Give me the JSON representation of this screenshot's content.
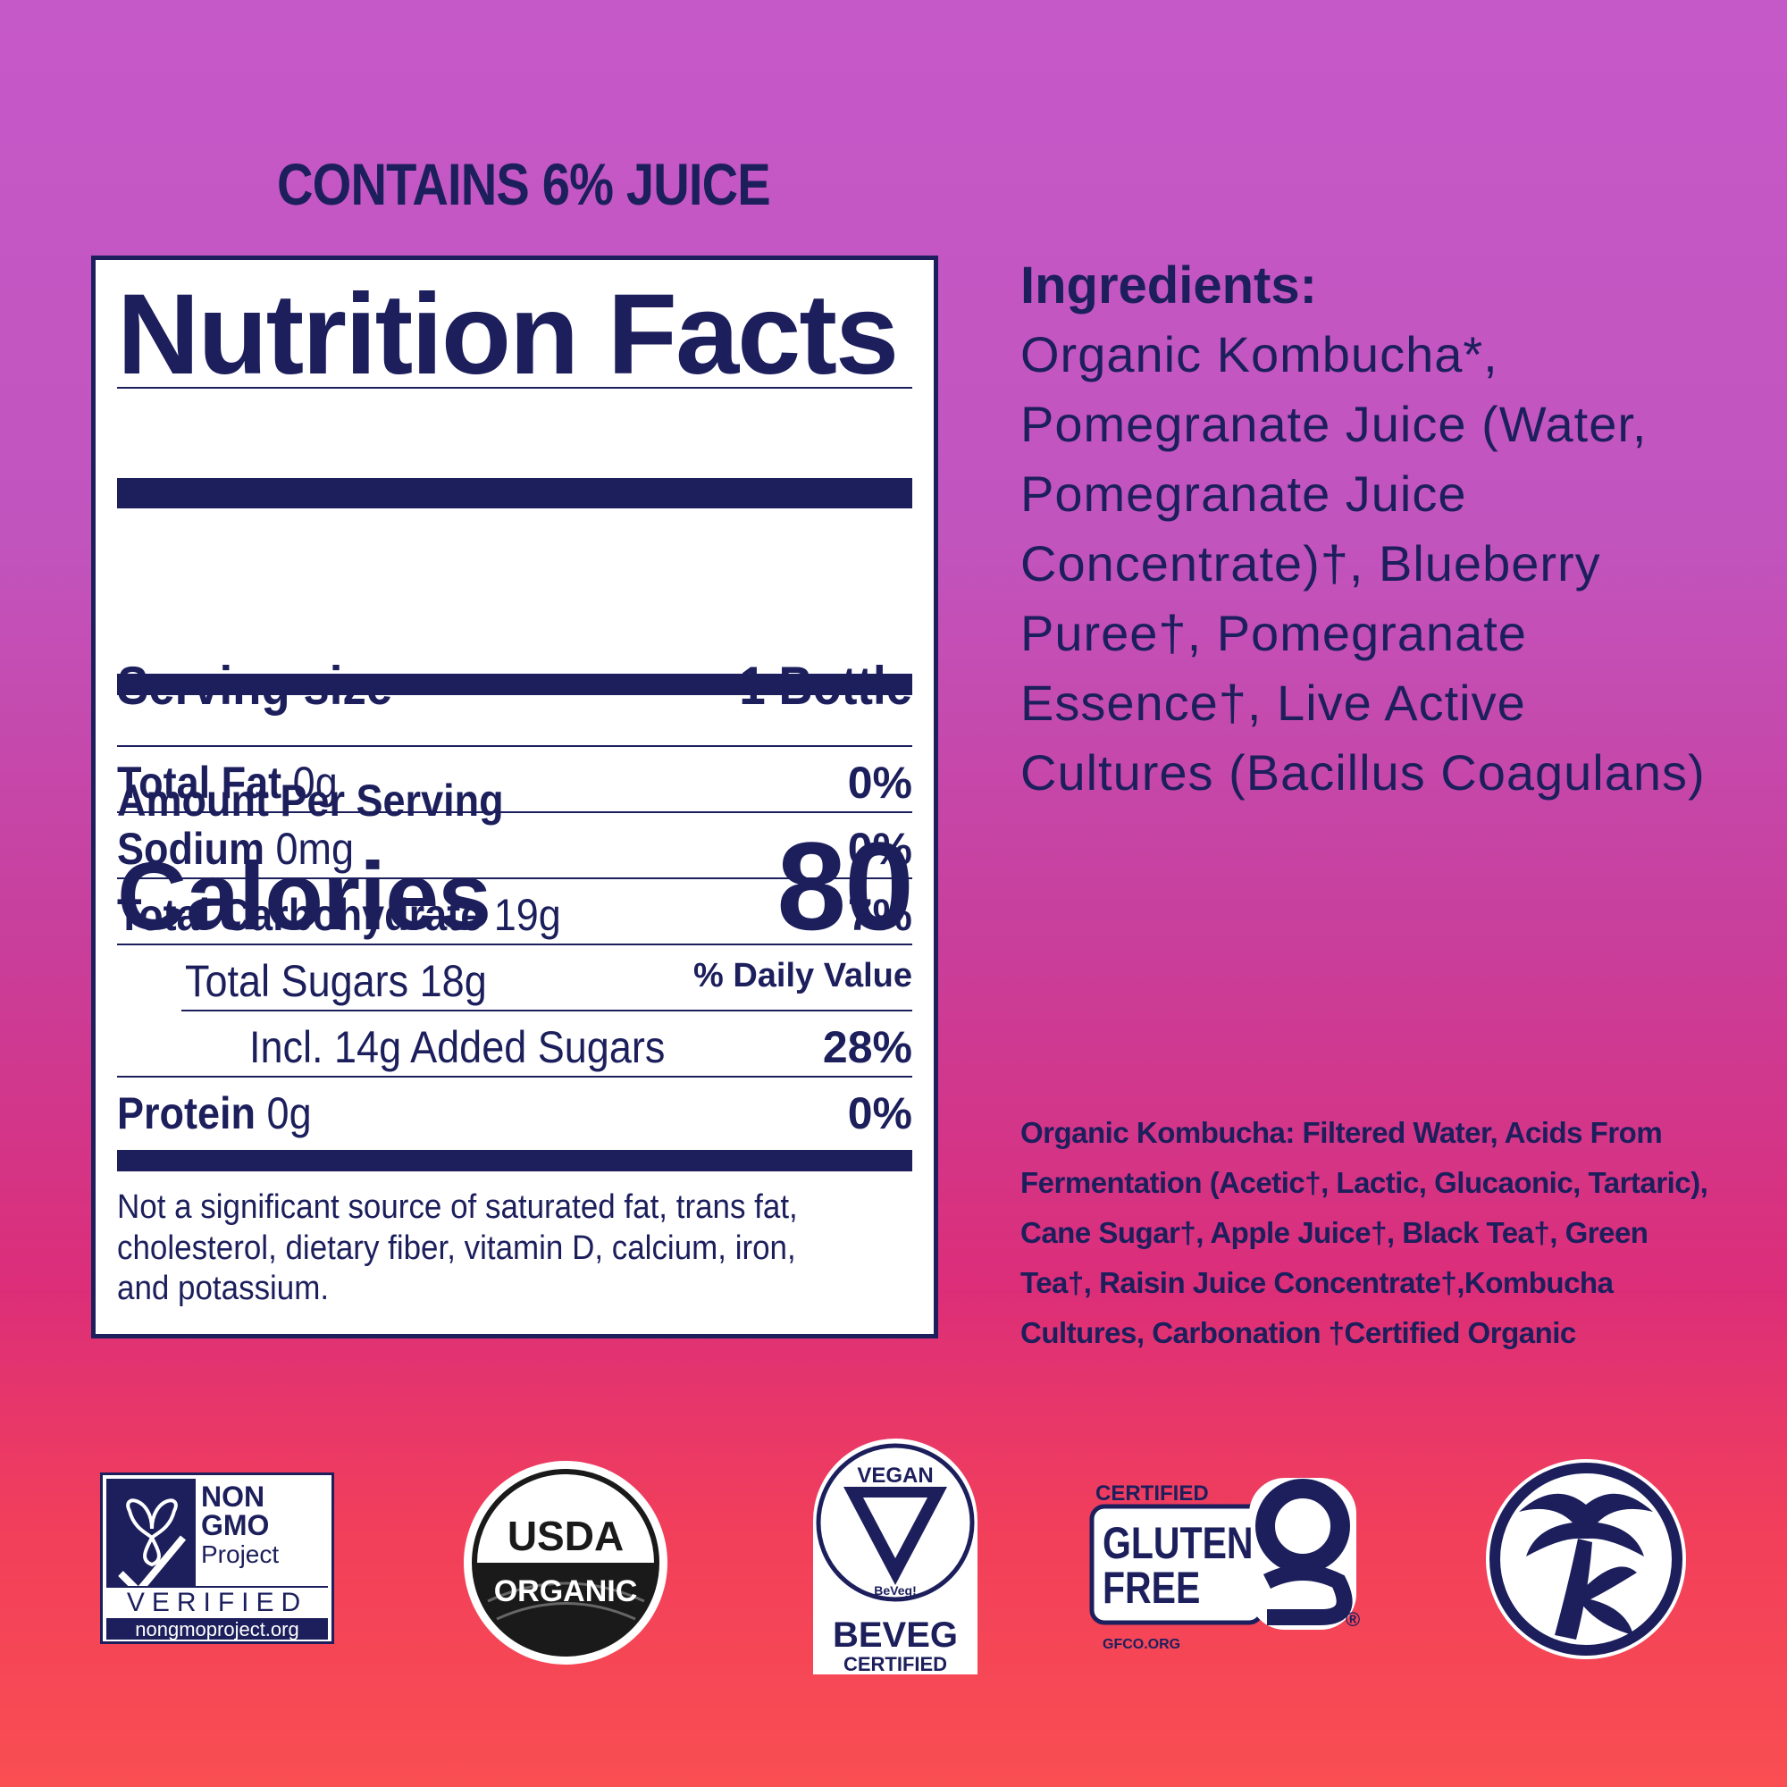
{
  "juice_note": "CONTAINS 6% JUICE",
  "nutrition": {
    "title": "Nutrition Facts",
    "serving_label": "Serving size",
    "serving_value": "1 Bottle",
    "amount_per_serving": "Amount Per Serving",
    "calories_label": "Calories",
    "calories_value": "80",
    "daily_value_header": "% Daily Value",
    "rows": [
      {
        "name": "Total Fat",
        "amount": "0g",
        "dv": "0%"
      },
      {
        "name": "Sodium",
        "amount": "0mg",
        "dv": "0%"
      },
      {
        "name": "Total Carbohydrate",
        "amount": "19g",
        "dv": "7%"
      },
      {
        "name": "",
        "amount": "Total Sugars 18g",
        "dv": ""
      },
      {
        "name": "",
        "amount": "Incl. 14g Added Sugars",
        "dv": "28%"
      },
      {
        "name": "Protein",
        "amount": "0g",
        "dv": "0%"
      }
    ],
    "footnote": "Not a significant source of saturated fat, trans fat, cholesterol, dietary fiber, vitamin D, calcium, iron, and potassium."
  },
  "ingredients": {
    "title": "Ingredients:",
    "text": "Organic Kombucha*, Pomegranate Juice (Water, Pomegranate Juice Concentrate)†, Blueberry Puree†, Pomegranate Essence†, Live Active Cultures (Bacillus Coagulans)"
  },
  "kombucha_note": "Organic Kombucha: Filtered Water, Acids From Fermentation (Acetic†, Lactic, Glucaonic, Tartaric), Cane Sugar†, Apple Juice†, Black Tea†, Green Tea†, Raisin Juice Concentrate†,Kombucha Cultures, Carbonation †Certified Organic",
  "badges": {
    "nongmo": {
      "line1": "NON",
      "line2": "GMO",
      "line3": "Project",
      "verified": "VERIFIED",
      "url": "nongmoproject.org"
    },
    "usda": {
      "line1": "USDA",
      "line2": "ORGANIC"
    },
    "vegan": {
      "top": "VEGAN",
      "mid": "BeVeg!",
      "bottom1": "BEVEG",
      "bottom2": "CERTIFIED"
    },
    "glutenfree": {
      "top": "CERTIFIED",
      "line1": "GLUTEN",
      "line2": "FREE",
      "url": "GFCO.ORG",
      "mark": "®"
    },
    "brand": {
      "icon": "palm-tree-k-logo"
    }
  },
  "colors": {
    "navy": "#1c1f5c",
    "bg_top": "#c659c8",
    "bg_bottom": "#f94e52",
    "panel": "#ffffff"
  }
}
